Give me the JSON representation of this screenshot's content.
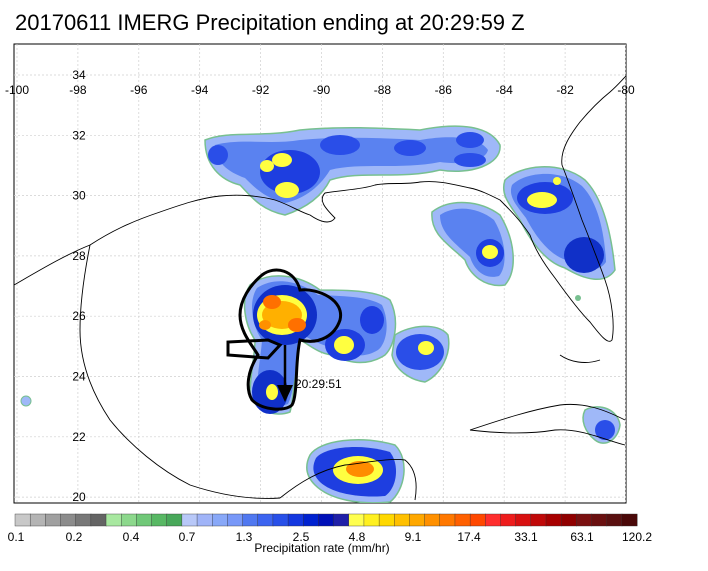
{
  "title": "20170611 IMERG Precipitation ending at 20:29:59 Z",
  "map": {
    "lon_labels": [
      "-100",
      "-98",
      "-96",
      "-94",
      "-92",
      "-90",
      "-88",
      "-86",
      "-84",
      "-82",
      "-80"
    ],
    "lat_labels": [
      "34",
      "32",
      "30",
      "28",
      "26",
      "24",
      "22",
      "20"
    ],
    "track_time_label": "20:29:51"
  },
  "colorbar": {
    "ticks": [
      "0.1",
      "0.2",
      "0.4",
      "0.7",
      "1.3",
      "2.5",
      "4.8",
      "9.1",
      "17.4",
      "33.1",
      "63.1",
      "120.2"
    ],
    "label": "Precipitation rate (mm/hr)",
    "colors": [
      "#c8c8c8",
      "#b4b4b4",
      "#a0a0a0",
      "#8c8c8c",
      "#787878",
      "#646464",
      "#a8e8a0",
      "#8cd88c",
      "#70c878",
      "#58b864",
      "#48a85a",
      "#b8c8f8",
      "#a0b4f8",
      "#88a8f8",
      "#7898f8",
      "#5078f0",
      "#3c64f0",
      "#2850e8",
      "#1438e0",
      "#0022d0",
      "#0010b8",
      "#2020a8",
      "#ffff50",
      "#fff020",
      "#ffd800",
      "#ffc000",
      "#ffa800",
      "#ff9000",
      "#ff7800",
      "#ff6000",
      "#ff4800",
      "#ff2e2e",
      "#ee1c1c",
      "#d81010",
      "#c00808",
      "#a80000",
      "#900000",
      "#7a1010",
      "#6a1010",
      "#5a1010",
      "#4a0808"
    ]
  }
}
